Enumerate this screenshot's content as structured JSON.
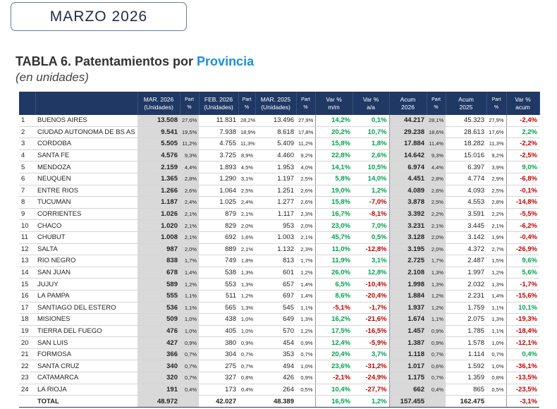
{
  "badge": "MARZO 2026",
  "title": {
    "prefix": "TABLA 6. Patentamientos por",
    "highlight": "Provincia"
  },
  "subtitle": "(en unidades)",
  "table": {
    "header": [
      [
        "MAR. 2026",
        "(Unidades)"
      ],
      [
        "Part",
        "%"
      ],
      [
        "FEB. 2026",
        "(Unidades)"
      ],
      [
        "Part",
        "%"
      ],
      [
        "MAR. 2025",
        "(Unidades)"
      ],
      [
        "Part",
        "%"
      ],
      [
        "Var %",
        "m/m"
      ],
      [
        "Var %",
        "a/a"
      ],
      [
        "Acum",
        "2026"
      ],
      [
        "Part",
        "%"
      ],
      [
        "Acum",
        "2025"
      ],
      [
        "Part",
        "%"
      ],
      [
        "Var %",
        "acum"
      ]
    ],
    "rows": [
      [
        "1",
        "BUENOS AIRES",
        "13.508",
        "27,6%",
        "11.831",
        "28,2%",
        "13.496",
        "27,9%",
        "14,2%",
        "0,1%",
        "44.217",
        "28,1%",
        "45.323",
        "27,9%",
        "-2,4%"
      ],
      [
        "2",
        "CIUDAD AUTONOMA DE BS AS",
        "9.541",
        "19,5%",
        "7.938",
        "18,9%",
        "8.618",
        "17,8%",
        "20,2%",
        "10,7%",
        "29.238",
        "18,6%",
        "28.613",
        "17,6%",
        "2,2%"
      ],
      [
        "3",
        "CORDOBA",
        "5.505",
        "11,2%",
        "4.755",
        "11,3%",
        "5.409",
        "11,2%",
        "15,8%",
        "1,8%",
        "17.884",
        "11,4%",
        "18.282",
        "11,3%",
        "-2,2%"
      ],
      [
        "4",
        "SANTA FE",
        "4.576",
        "9,3%",
        "3.725",
        "8,9%",
        "4.460",
        "9,2%",
        "22,8%",
        "2,6%",
        "14.642",
        "9,3%",
        "15.016",
        "9,2%",
        "-2,5%"
      ],
      [
        "5",
        "MENDOZA",
        "2.159",
        "4,4%",
        "1.893",
        "4,5%",
        "1.953",
        "4,0%",
        "14,1%",
        "10,5%",
        "6.974",
        "4,4%",
        "6.397",
        "3,9%",
        "9,0%"
      ],
      [
        "6",
        "NEUQUEN",
        "1.365",
        "2,8%",
        "1.290",
        "3,1%",
        "1.197",
        "2,5%",
        "5,8%",
        "14,0%",
        "4.451",
        "2,8%",
        "4.774",
        "2,9%",
        "-6,8%"
      ],
      [
        "7",
        "ENTRE RIOS",
        "1.266",
        "2,6%",
        "1.064",
        "2,5%",
        "1.251",
        "2,6%",
        "19,0%",
        "1,2%",
        "4.089",
        "2,6%",
        "4.093",
        "2,5%",
        "-0,1%"
      ],
      [
        "8",
        "TUCUMAN",
        "1.187",
        "2,4%",
        "1.025",
        "2,4%",
        "1.277",
        "2,6%",
        "15,8%",
        "-7,0%",
        "3.878",
        "2,5%",
        "4.553",
        "2,8%",
        "-14,8%"
      ],
      [
        "9",
        "CORRIENTES",
        "1.026",
        "2,1%",
        "879",
        "2,1%",
        "1.117",
        "2,3%",
        "16,7%",
        "-8,1%",
        "3.392",
        "2,2%",
        "3.591",
        "2,2%",
        "-5,5%"
      ],
      [
        "10",
        "CHACO",
        "1.020",
        "2,1%",
        "829",
        "2,0%",
        "953",
        "2,0%",
        "23,0%",
        "7,0%",
        "3.231",
        "2,1%",
        "3.445",
        "2,1%",
        "-6,2%"
      ],
      [
        "11",
        "CHUBUT",
        "1.008",
        "2,1%",
        "692",
        "1,6%",
        "1.003",
        "2,1%",
        "45,7%",
        "0,5%",
        "3.128",
        "2,0%",
        "3.142",
        "1,9%",
        "-0,4%"
      ],
      [
        "12",
        "SALTA",
        "987",
        "2,0%",
        "889",
        "2,1%",
        "1.132",
        "2,3%",
        "11,0%",
        "-12,8%",
        "3.195",
        "2,0%",
        "4.372",
        "2,7%",
        "-26,9%"
      ],
      [
        "13",
        "RIO NEGRO",
        "838",
        "1,7%",
        "749",
        "1,8%",
        "813",
        "1,7%",
        "11,9%",
        "3,1%",
        "2.725",
        "1,7%",
        "2.487",
        "1,5%",
        "9,6%"
      ],
      [
        "14",
        "SAN JUAN",
        "678",
        "1,4%",
        "538",
        "1,3%",
        "601",
        "1,2%",
        "26,0%",
        "12,8%",
        "2.108",
        "1,3%",
        "1.997",
        "1,2%",
        "5,6%"
      ],
      [
        "15",
        "JUJUY",
        "589",
        "1,2%",
        "553",
        "1,3%",
        "657",
        "1,4%",
        "6,5%",
        "-10,4%",
        "1.998",
        "1,3%",
        "2.032",
        "1,3%",
        "-1,7%"
      ],
      [
        "16",
        "LA PAMPA",
        "555",
        "1,1%",
        "511",
        "1,2%",
        "697",
        "1,4%",
        "8,6%",
        "-20,4%",
        "1.884",
        "1,2%",
        "2.231",
        "1,4%",
        "-15,6%"
      ],
      [
        "17",
        "SANTIAGO DEL ESTERO",
        "536",
        "1,1%",
        "565",
        "1,3%",
        "545",
        "1,1%",
        "-5,1%",
        "-1,7%",
        "1.937",
        "1,2%",
        "1.759",
        "1,1%",
        "10,1%"
      ],
      [
        "18",
        "MISIONES",
        "509",
        "1,0%",
        "438",
        "1,0%",
        "649",
        "1,3%",
        "16,2%",
        "-21,6%",
        "1.674",
        "1,1%",
        "2.075",
        "1,3%",
        "-19,3%"
      ],
      [
        "19",
        "TIERRA DEL FUEGO",
        "476",
        "1,0%",
        "405",
        "1,0%",
        "570",
        "1,2%",
        "17,5%",
        "-16,5%",
        "1.457",
        "0,9%",
        "1.785",
        "1,1%",
        "-18,4%"
      ],
      [
        "20",
        "SAN LUIS",
        "427",
        "0,9%",
        "380",
        "0,9%",
        "454",
        "0,9%",
        "12,4%",
        "-5,9%",
        "1.387",
        "0,9%",
        "1.578",
        "1,0%",
        "-12,1%"
      ],
      [
        "21",
        "FORMOSA",
        "366",
        "0,7%",
        "304",
        "0,7%",
        "353",
        "0,7%",
        "20,4%",
        "3,7%",
        "1.118",
        "0,7%",
        "1.114",
        "0,7%",
        "0,4%"
      ],
      [
        "22",
        "SANTA CRUZ",
        "340",
        "0,7%",
        "275",
        "0,7%",
        "494",
        "1,0%",
        "23,6%",
        "-31,2%",
        "1.017",
        "0,6%",
        "1.592",
        "1,0%",
        "-36,1%"
      ],
      [
        "23",
        "CATAMARCA",
        "320",
        "0,7%",
        "327",
        "0,8%",
        "426",
        "0,9%",
        "-2,1%",
        "-24,9%",
        "1.175",
        "0,7%",
        "1.359",
        "0,8%",
        "-13,5%"
      ],
      [
        "24",
        "LA RIOJA",
        "191",
        "0,4%",
        "173",
        "0,4%",
        "264",
        "0,5%",
        "10,4%",
        "-27,7%",
        "662",
        "0,4%",
        "865",
        "0,5%",
        "-23,5%"
      ]
    ],
    "total": [
      null,
      "TOTAL",
      "48.972",
      null,
      "42.027",
      null,
      "48.389",
      null,
      "16,5%",
      "1,2%",
      "157.455",
      null,
      "162.475",
      null,
      "-3,1%"
    ]
  }
}
